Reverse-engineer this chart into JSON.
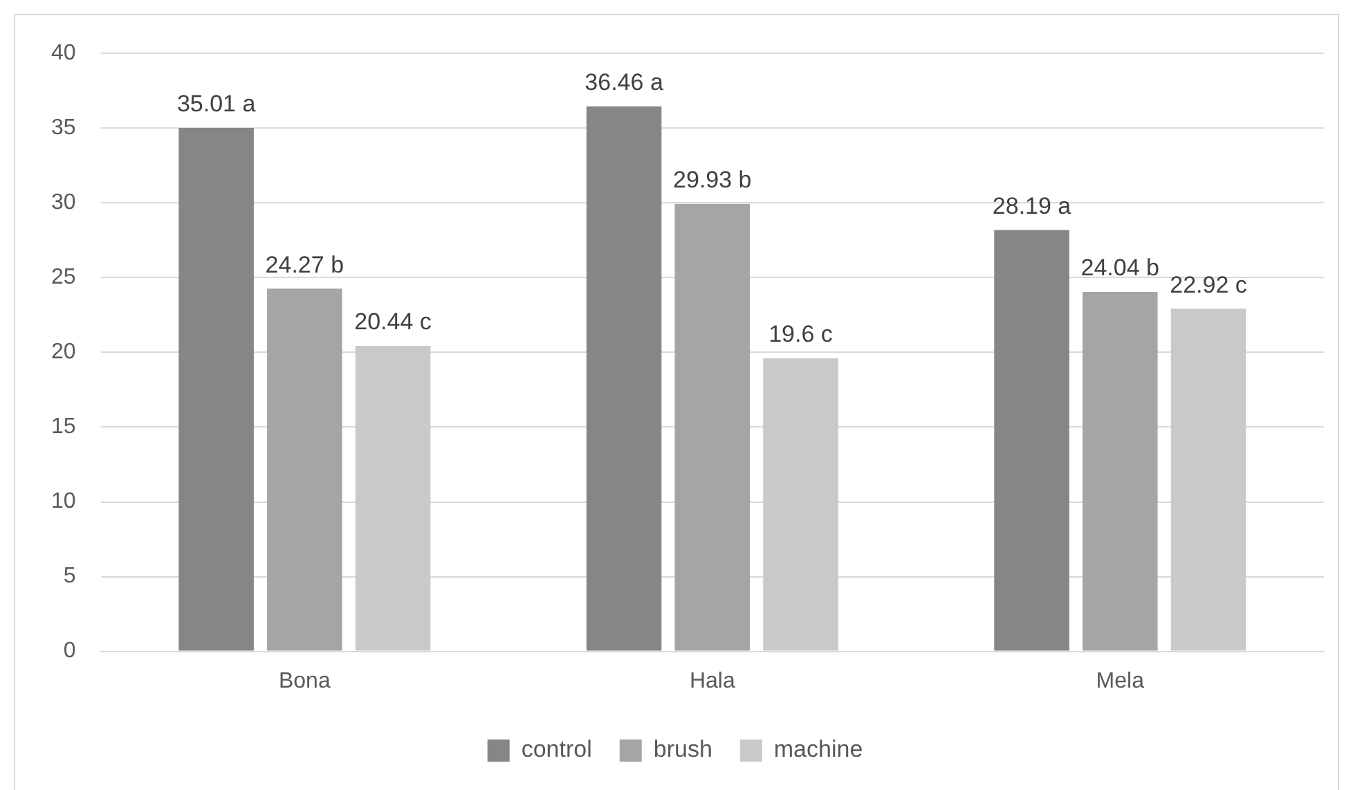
{
  "chart_data": {
    "type": "bar",
    "categories": [
      "Bona",
      "Hala",
      "Mela"
    ],
    "series": [
      {
        "name": "control",
        "color": "#868686",
        "values": [
          35.01,
          36.46,
          28.19
        ],
        "value_labels": [
          "35.01 a",
          "36.46 a",
          "28.19 a"
        ]
      },
      {
        "name": "brush",
        "color": "#a5a5a5",
        "values": [
          24.27,
          29.93,
          24.04
        ],
        "value_labels": [
          "24.27 b",
          "29.93 b",
          "24.04 b"
        ]
      },
      {
        "name": "machine",
        "color": "#c9c9c9",
        "values": [
          20.44,
          19.6,
          22.92
        ],
        "value_labels": [
          "20.44 c",
          "19.6 c",
          "22.92 c"
        ]
      }
    ],
    "ylim": [
      0,
      40
    ],
    "yticks": [
      0,
      5,
      10,
      15,
      20,
      25,
      30,
      35,
      40
    ],
    "grid": "y",
    "legend": "bottom"
  }
}
